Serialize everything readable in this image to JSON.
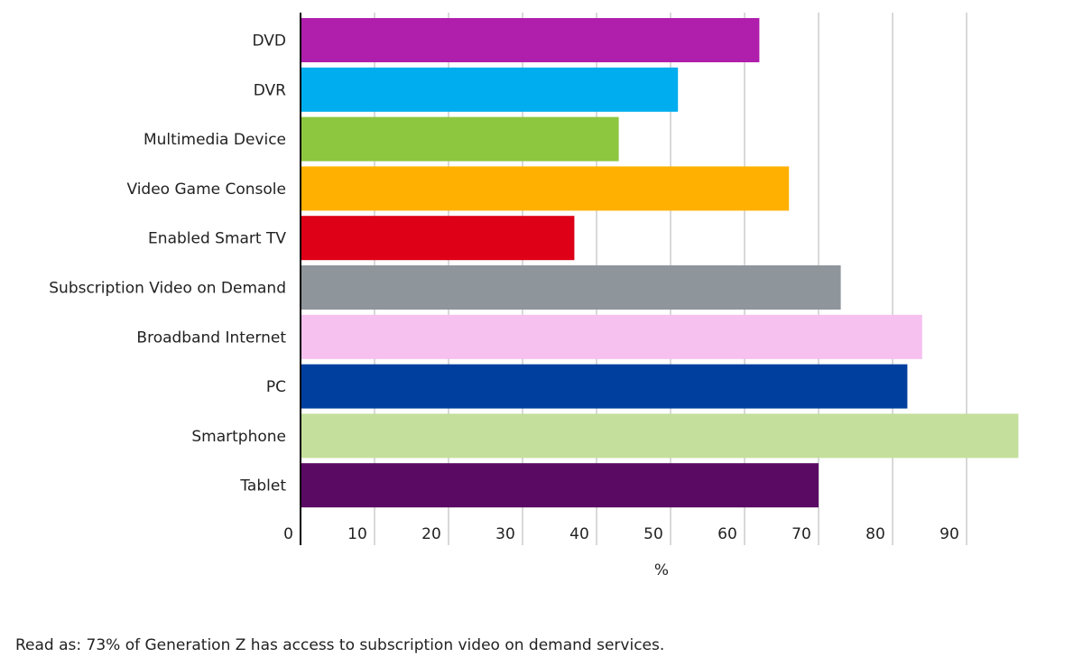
{
  "chart_data": {
    "type": "bar",
    "orientation": "horizontal",
    "categories": [
      "DVD",
      "DVR",
      "Multimedia Device",
      "Video Game Console",
      "Enabled Smart TV",
      "Subscription Video on Demand",
      "Broadband Internet",
      "PC",
      "Smartphone",
      "Tablet"
    ],
    "values": [
      62,
      51,
      43,
      66,
      37,
      73,
      84,
      82,
      97,
      70
    ],
    "colors": [
      "#b01fac",
      "#00adef",
      "#8dc63f",
      "#ffb000",
      "#dd0017",
      "#8e959b",
      "#f6c0ef",
      "#003f9e",
      "#c4df9c",
      "#5a0a62"
    ],
    "x_ticks": [
      "0",
      "10",
      "20",
      "30",
      "40",
      "50",
      "60",
      "70",
      "80",
      "90"
    ],
    "xlim": [
      0,
      100
    ],
    "xlabel": "%",
    "grid": "vertical",
    "legend": "none"
  },
  "note": "Read as: 73% of Generation Z has access to subscription video on demand services."
}
